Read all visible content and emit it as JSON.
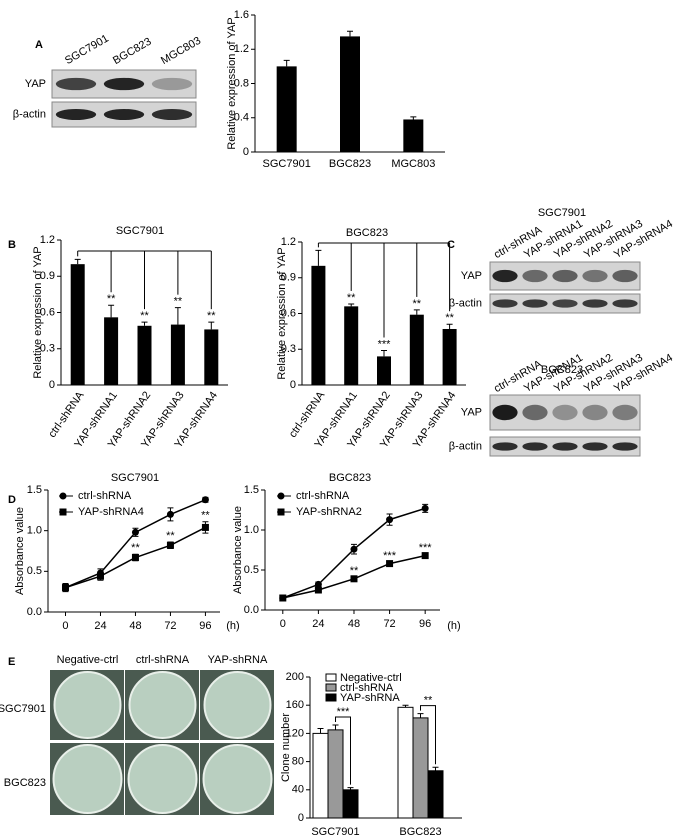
{
  "panel_labels": [
    "A",
    "B",
    "C",
    "D",
    "E"
  ],
  "blots": [
    {
      "columns": [
        "SGC7901",
        "BGC823",
        "MGC803"
      ],
      "rows": [
        "YAP",
        "β-actin"
      ]
    },
    {
      "title": "SGC7901",
      "columns": [
        "ctrl-shRNA",
        "YAP-shRNA1",
        "YAP-shRNA2",
        "YAP-shRNA3",
        "YAP-shRNA4"
      ],
      "rows": [
        "YAP",
        "β-actin"
      ]
    },
    {
      "title": "BGC823",
      "columns": [
        "ctrl-shRNA",
        "YAP-shRNA1",
        "YAP-shRNA2",
        "YAP-shRNA3",
        "YAP-shRNA4"
      ],
      "rows": [
        "YAP",
        "β-actin"
      ]
    }
  ],
  "plates": {
    "columns": [
      "Negative-ctrl",
      "ctrl-shRNA",
      "YAP-shRNA"
    ],
    "rows": [
      "SGC7901",
      "BGC823"
    ]
  },
  "chart_data": [
    {
      "type": "bar",
      "ylabel": "Relative expression of YAP",
      "categories": [
        "SGC7901",
        "BGC823",
        "MGC803"
      ],
      "values": [
        1.0,
        1.35,
        0.38
      ],
      "errors": [
        0.07,
        0.06,
        0.03
      ],
      "color": "#000000",
      "ylim": [
        0,
        1.6
      ],
      "yticks": [
        0,
        0.4,
        0.8,
        1.2,
        1.6
      ]
    },
    {
      "type": "bar",
      "title": "SGC7901",
      "ylabel": "Relative expression of YAP",
      "categories": [
        "ctrl-shRNA",
        "YAP-shRNA1",
        "YAP-shRNA2",
        "YAP-shRNA3",
        "YAP-shRNA4"
      ],
      "values": [
        1.0,
        0.56,
        0.49,
        0.5,
        0.46
      ],
      "errors": [
        0.04,
        0.1,
        0.03,
        0.14,
        0.06
      ],
      "significance": [
        null,
        "**",
        "**",
        "**",
        "**"
      ],
      "color": "#000000",
      "ylim": [
        0,
        1.2
      ],
      "yticks": [
        0,
        0.3,
        0.6,
        0.9,
        1.2
      ]
    },
    {
      "type": "bar",
      "title": "BGC823",
      "ylabel": "Relative expression of YAP",
      "categories": [
        "ctrl-shRNA",
        "YAP-shRNA1",
        "YAP-shRNA2",
        "YAP-shRNA3",
        "YAP-shRNA4"
      ],
      "values": [
        1.0,
        0.66,
        0.24,
        0.59,
        0.47
      ],
      "errors": [
        0.13,
        0.02,
        0.05,
        0.04,
        0.04
      ],
      "significance": [
        null,
        "**",
        "***",
        "**",
        "**"
      ],
      "color": "#000000",
      "ylim": [
        0,
        1.2
      ],
      "yticks": [
        0,
        0.3,
        0.6,
        0.9,
        1.2
      ]
    },
    {
      "type": "line",
      "title": "SGC7901",
      "ylabel": "Absorbance value",
      "xlabel": "(h)",
      "x": [
        0,
        24,
        48,
        72,
        96
      ],
      "xlim": [
        -12,
        106
      ],
      "xticks": [
        0,
        24,
        48,
        72,
        96
      ],
      "ylim": [
        0,
        1.5
      ],
      "yticks": [
        {
          "value": 0,
          "label": "0.0"
        },
        0.5,
        {
          "value": 1,
          "label": "1.0"
        },
        1.5
      ],
      "legend": "upper left",
      "series": [
        {
          "name": "ctrl-shRNA",
          "color": "#000000",
          "marker": "circle",
          "values": [
            0.3,
            0.48,
            0.98,
            1.2,
            1.38
          ],
          "errors": [
            0.05,
            0.05,
            0.05,
            0.08,
            0.03
          ]
        },
        {
          "name": "YAP-shRNA4",
          "color": "#000000",
          "marker": "square",
          "values": [
            0.3,
            0.44,
            0.67,
            0.82,
            1.04
          ],
          "errors": [
            0.04,
            0.05,
            0.04,
            0.04,
            0.07
          ],
          "significance": [
            null,
            null,
            "**",
            "**",
            "**"
          ]
        }
      ]
    },
    {
      "type": "line",
      "title": "BGC823",
      "ylabel": "Absorbance value",
      "xlabel": "(h)",
      "x": [
        0,
        24,
        48,
        72,
        96
      ],
      "xlim": [
        -12,
        106
      ],
      "xticks": [
        0,
        24,
        48,
        72,
        96
      ],
      "ylim": [
        0,
        1.5
      ],
      "yticks": [
        {
          "value": 0,
          "label": "0.0"
        },
        0.5,
        {
          "value": 1,
          "label": "1.0"
        },
        1.5
      ],
      "legend": "upper left",
      "series": [
        {
          "name": "ctrl-shRNA",
          "color": "#000000",
          "marker": "circle",
          "values": [
            0.15,
            0.32,
            0.76,
            1.13,
            1.27
          ],
          "errors": [
            0.02,
            0.03,
            0.06,
            0.07,
            0.05
          ]
        },
        {
          "name": "YAP-shRNA2",
          "color": "#000000",
          "marker": "square",
          "values": [
            0.15,
            0.25,
            0.39,
            0.58,
            0.68
          ],
          "errors": [
            0.02,
            0.02,
            0.02,
            0.02,
            0.02
          ],
          "significance": [
            null,
            null,
            "**",
            "***",
            "***"
          ]
        }
      ]
    },
    {
      "type": "bar",
      "ylabel": "Clone number",
      "categories": [
        "SGC7901",
        "BGC823"
      ],
      "ylim": [
        0,
        200
      ],
      "yticks": [
        0,
        40,
        80,
        120,
        160,
        200
      ],
      "legend": "upper left",
      "significance": [
        "***",
        "**"
      ],
      "series": [
        {
          "name": "Negative-ctrl",
          "color": "#ffffff",
          "values": [
            120,
            157
          ],
          "errors": [
            7,
            3
          ]
        },
        {
          "name": "ctrl-shRNA",
          "color": "#999999",
          "values": [
            125,
            142
          ],
          "errors": [
            7,
            6
          ]
        },
        {
          "name": "YAP-shRNA",
          "color": "#000000",
          "values": [
            40,
            67
          ],
          "errors": [
            3,
            5
          ]
        }
      ]
    }
  ]
}
